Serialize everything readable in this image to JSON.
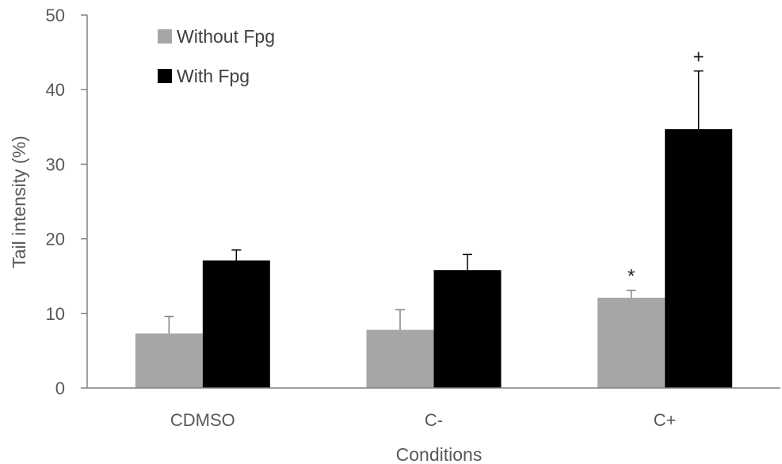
{
  "chart_data": {
    "type": "bar",
    "categories": [
      "CDMSO",
      "C-",
      "C+"
    ],
    "series": [
      {
        "name": "Without Fpg",
        "values": [
          7.3,
          7.8,
          12.1
        ],
        "errors": [
          2.3,
          2.7,
          1.0
        ],
        "color": "#a6a6a6"
      },
      {
        "name": "With Fpg",
        "values": [
          17.1,
          15.8,
          34.7
        ],
        "errors": [
          1.4,
          2.1,
          7.8
        ],
        "color": "#000000"
      }
    ],
    "annotations": [
      {
        "series": 0,
        "category": 2,
        "text": "*"
      },
      {
        "series": 1,
        "category": 2,
        "text": "+"
      }
    ],
    "xlabel": "Conditions",
    "ylabel": "Tail intensity (%)",
    "ylim": [
      0,
      50
    ],
    "yticks": [
      0,
      10,
      20,
      30,
      40,
      50
    ],
    "grid": false,
    "legend": "top-left"
  }
}
